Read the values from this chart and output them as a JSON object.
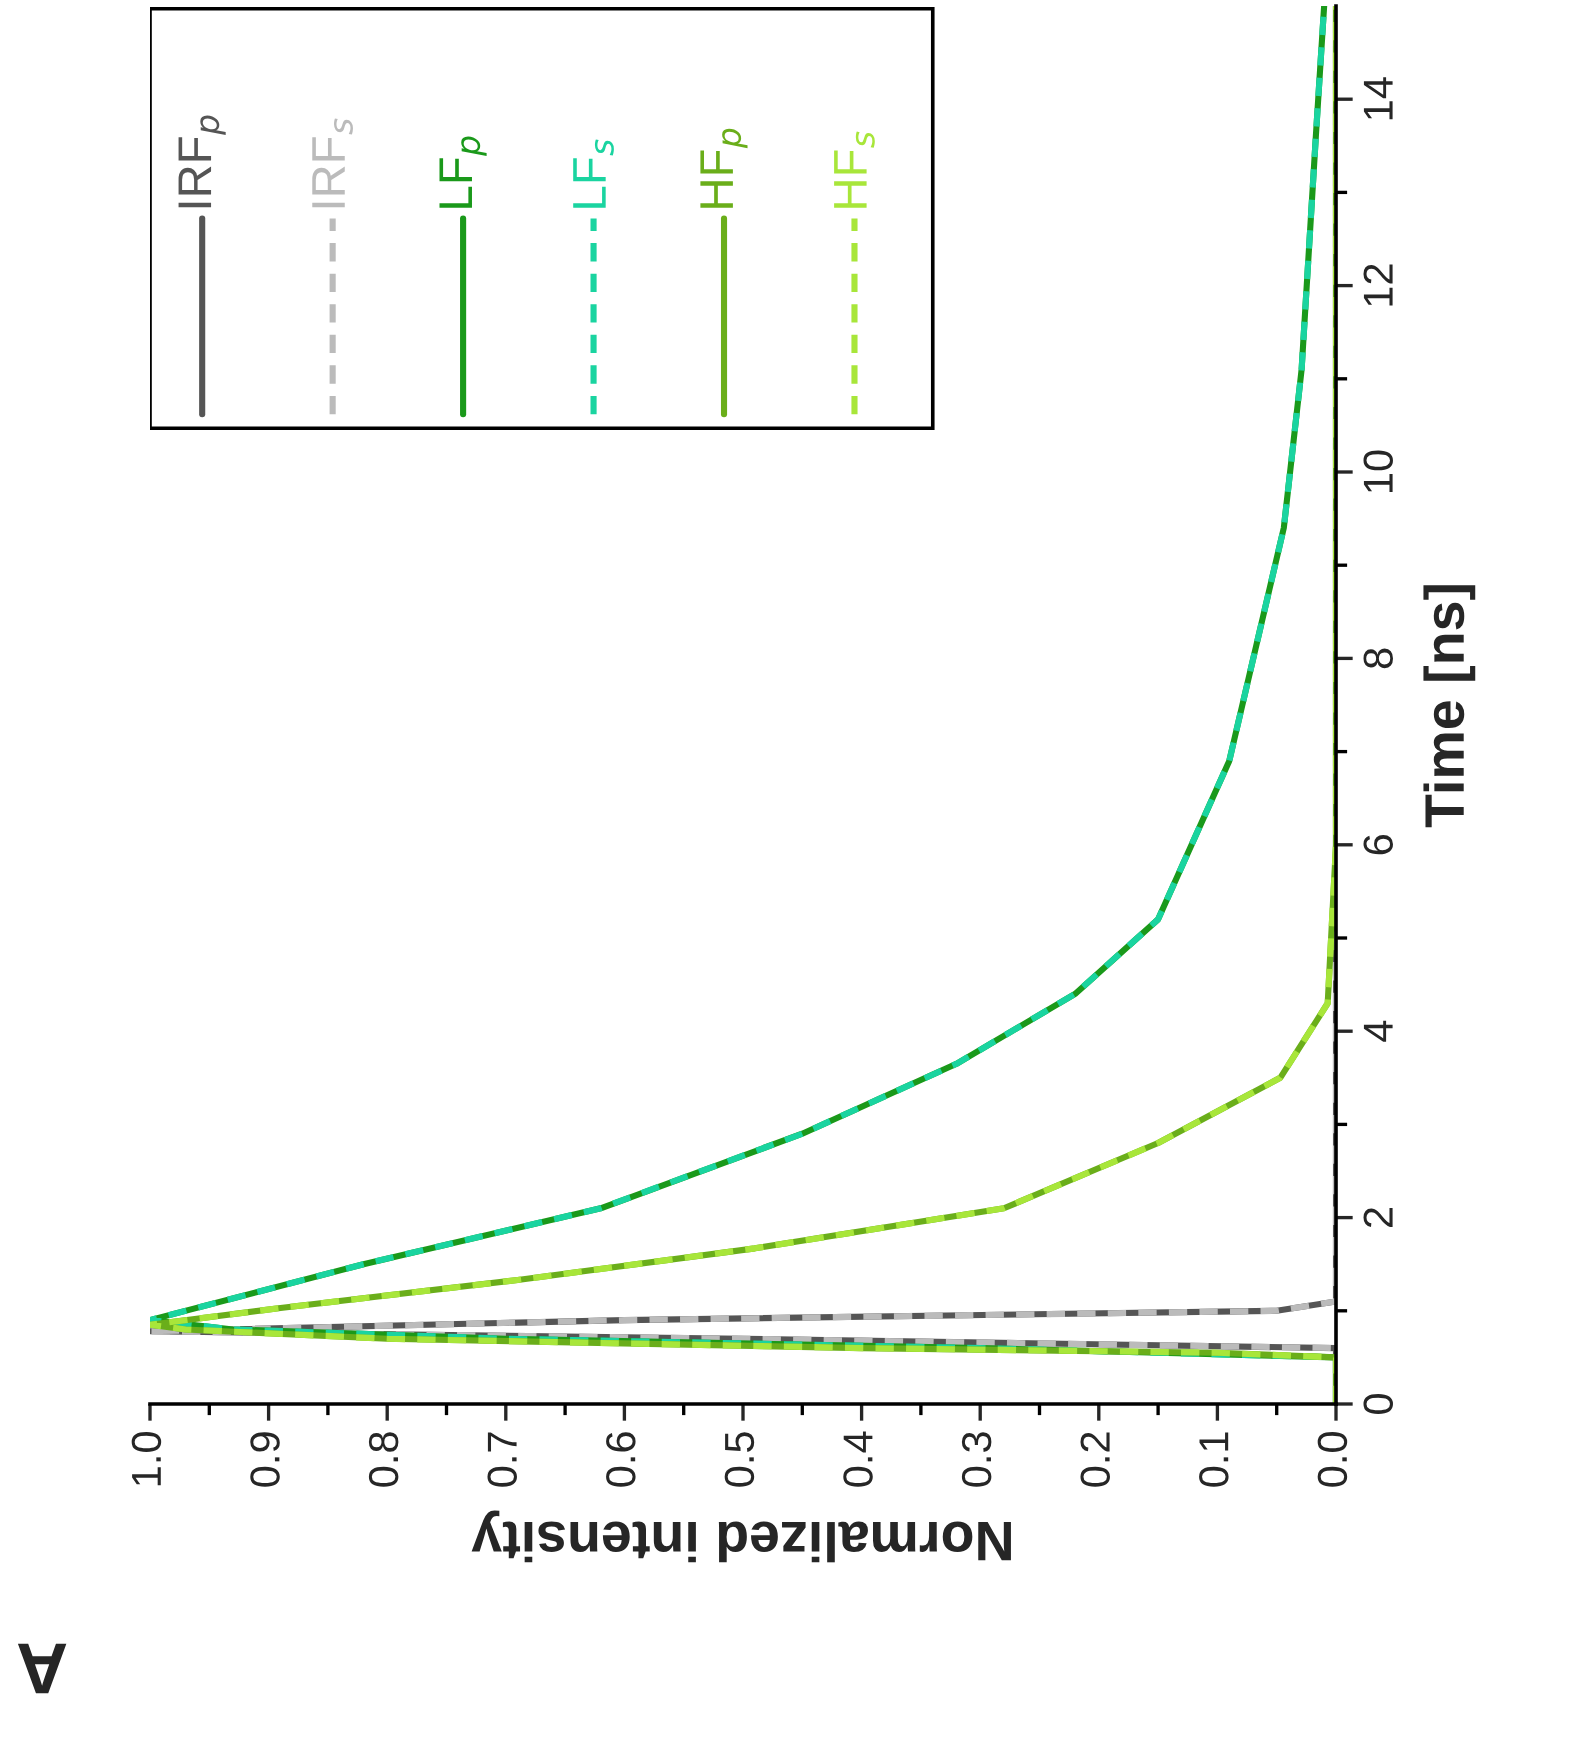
{
  "chart_data": {
    "type": "line",
    "orientation": "horizontal",
    "xlabel": "Normalized intensity",
    "ylabel": "Time [ns]",
    "annotations": [
      "A"
    ],
    "xlim": [
      1.0,
      0.0
    ],
    "ylim": [
      0,
      15
    ],
    "xticks": [
      {
        "value": 1.0,
        "label": "1.0"
      },
      {
        "value": 0.95,
        "label": null
      },
      {
        "value": 0.9,
        "label": "0.9"
      },
      {
        "value": 0.85,
        "label": null
      },
      {
        "value": 0.8,
        "label": "0.8"
      },
      {
        "value": 0.75,
        "label": null
      },
      {
        "value": 0.7,
        "label": "0.7"
      },
      {
        "value": 0.65,
        "label": null
      },
      {
        "value": 0.6,
        "label": "0.6"
      },
      {
        "value": 0.55,
        "label": null
      },
      {
        "value": 0.5,
        "label": "0.5"
      },
      {
        "value": 0.45,
        "label": null
      },
      {
        "value": 0.4,
        "label": "0.4"
      },
      {
        "value": 0.35,
        "label": null
      },
      {
        "value": 0.3,
        "label": "0.3"
      },
      {
        "value": 0.25,
        "label": null
      },
      {
        "value": 0.2,
        "label": "0.2"
      },
      {
        "value": 0.15,
        "label": null
      },
      {
        "value": 0.1,
        "label": "0.1"
      },
      {
        "value": 0.05,
        "label": null
      },
      {
        "value": 0.0,
        "label": "0.0"
      }
    ],
    "yticks": [
      0,
      {
        "value": 1,
        "label": null
      },
      2,
      {
        "value": 3,
        "label": null
      },
      4,
      {
        "value": 5,
        "label": null
      },
      6,
      {
        "value": 7,
        "label": null
      },
      8,
      {
        "value": 9,
        "label": null
      },
      10,
      {
        "value": 11,
        "label": null
      },
      12,
      {
        "value": 13,
        "label": null
      },
      14
    ],
    "legend": "top left",
    "grid": false,
    "series": [
      {
        "name": "IRF$_{p}$",
        "color": "#555555",
        "line_style": "solid",
        "x": [
          0,
          0.6,
          0.7,
          0.78,
          0.9,
          1.0,
          1.1,
          15
        ],
        "values": [
          0,
          0,
          0.5,
          1.0,
          0.6,
          0.05,
          0,
          0
        ]
      },
      {
        "name": "IRF$_{s}$",
        "color": "#bbbbbb",
        "line_style": "dashed",
        "x": [
          0,
          0.6,
          0.7,
          0.78,
          0.9,
          1.0,
          1.1,
          15
        ],
        "values": [
          0,
          0,
          0.5,
          1.0,
          0.6,
          0.05,
          0,
          0
        ]
      },
      {
        "name": "LF$_{p}$",
        "color": "#1a991a",
        "line_style": "solid",
        "x": [
          0,
          0.5,
          0.6,
          0.7,
          0.8,
          0.9,
          1.5,
          2.1,
          2.9,
          3.65,
          4.4,
          5.2,
          6.9,
          9.4,
          11.1,
          13.6,
          15
        ],
        "values": [
          0,
          0,
          0.3,
          0.7,
          0.93,
          1.0,
          0.82,
          0.62,
          0.45,
          0.32,
          0.22,
          0.15,
          0.09,
          0.044,
          0.029,
          0.017,
          0.01
        ]
      },
      {
        "name": "LF$_{s}$",
        "color": "#1ad4a0",
        "line_style": "dashed",
        "x": [
          0,
          0.5,
          0.6,
          0.7,
          0.8,
          0.9,
          1.5,
          2.1,
          2.9,
          3.65,
          4.4,
          5.2,
          6.9,
          9.4,
          11.1,
          13.6,
          15
        ],
        "values": [
          0,
          0,
          0.3,
          0.7,
          0.93,
          1.0,
          0.82,
          0.62,
          0.45,
          0.32,
          0.22,
          0.15,
          0.09,
          0.044,
          0.029,
          0.017,
          0.01
        ]
      },
      {
        "name": "HF$_{p}$",
        "color": "#6aae1a",
        "line_style": "solid",
        "x": [
          0,
          0.5,
          0.55,
          0.6,
          0.7,
          0.8,
          0.85,
          1.03,
          1.33,
          1.67,
          2.1,
          2.8,
          3.5,
          4.3,
          6.0,
          15
        ],
        "values": [
          0,
          0,
          0.1,
          0.4,
          0.8,
          0.97,
          1.0,
          0.89,
          0.69,
          0.49,
          0.28,
          0.15,
          0.047,
          0.007,
          0,
          0
        ]
      },
      {
        "name": "HF$_{s}$",
        "color": "#a8e63a",
        "line_style": "dashed",
        "x": [
          0,
          0.5,
          0.55,
          0.6,
          0.7,
          0.8,
          0.85,
          1.03,
          1.33,
          1.67,
          2.1,
          2.8,
          3.5,
          4.3,
          6.0,
          15
        ],
        "values": [
          0,
          0,
          0.1,
          0.4,
          0.8,
          0.97,
          1.0,
          0.89,
          0.69,
          0.49,
          0.28,
          0.15,
          0.047,
          0.007,
          0,
          0
        ]
      }
    ]
  }
}
